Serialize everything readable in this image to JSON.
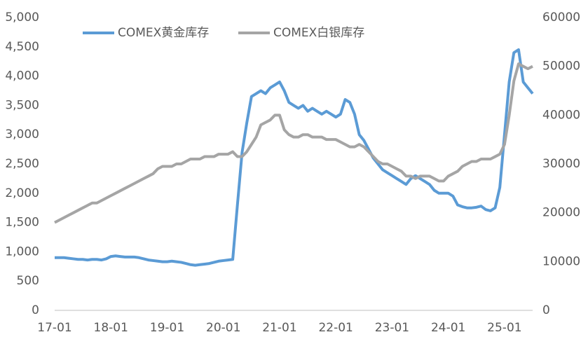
{
  "chart_data": {
    "type": "line",
    "categories": [
      "17-01",
      null,
      null,
      null,
      null,
      null,
      null,
      null,
      null,
      null,
      null,
      null,
      "18-01",
      null,
      null,
      null,
      null,
      null,
      null,
      null,
      null,
      null,
      null,
      null,
      "19-01",
      null,
      null,
      null,
      null,
      null,
      null,
      null,
      null,
      null,
      null,
      null,
      "20-01",
      null,
      null,
      null,
      null,
      null,
      null,
      null,
      null,
      null,
      null,
      null,
      "21-01",
      null,
      null,
      null,
      null,
      null,
      null,
      null,
      null,
      null,
      null,
      null,
      "22-01",
      null,
      null,
      null,
      null,
      null,
      null,
      null,
      null,
      null,
      null,
      null,
      "23-01",
      null,
      null,
      null,
      null,
      null,
      null,
      null,
      null,
      null,
      null,
      null,
      "24-01",
      null,
      null,
      null,
      null,
      null,
      null,
      null,
      null,
      null,
      null,
      null,
      "25-01",
      null,
      null,
      null,
      null,
      null,
      null
    ],
    "series": [
      {
        "name": "COMEX黄金库存",
        "color": "#5b9bd5",
        "axis": "y",
        "values": [
          900,
          900,
          900,
          890,
          880,
          870,
          870,
          860,
          870,
          870,
          860,
          880,
          920,
          930,
          920,
          910,
          910,
          910,
          900,
          880,
          860,
          850,
          840,
          830,
          830,
          840,
          830,
          820,
          800,
          780,
          770,
          780,
          790,
          800,
          820,
          840,
          850,
          860,
          870,
          1800,
          2700,
          3200,
          3650,
          3700,
          3750,
          3700,
          3800,
          3850,
          3900,
          3750,
          3550,
          3500,
          3450,
          3500,
          3400,
          3450,
          3400,
          3350,
          3400,
          3350,
          3300,
          3350,
          3600,
          3550,
          3350,
          3000,
          2900,
          2750,
          2600,
          2500,
          2400,
          2350,
          2300,
          2250,
          2200,
          2150,
          2250,
          2300,
          2250,
          2200,
          2150,
          2050,
          2000,
          2000,
          2000,
          1950,
          1800,
          1770,
          1750,
          1750,
          1760,
          1780,
          1720,
          1700,
          1750,
          2100,
          3000,
          3900,
          4400,
          4450,
          3900,
          3800,
          3700
        ]
      },
      {
        "name": "COMEX白银库存",
        "color": "#a5a5a5",
        "axis": "y2",
        "values": [
          18000,
          18500,
          19000,
          19500,
          20000,
          20500,
          21000,
          21500,
          22000,
          22000,
          22500,
          23000,
          23500,
          24000,
          24500,
          25000,
          25500,
          26000,
          26500,
          27000,
          27500,
          28000,
          29000,
          29500,
          29500,
          29500,
          30000,
          30000,
          30500,
          31000,
          31000,
          31000,
          31500,
          31500,
          31500,
          32000,
          32000,
          32000,
          32500,
          31500,
          31500,
          32500,
          34000,
          35500,
          38000,
          38500,
          39000,
          40000,
          40000,
          37000,
          36000,
          35500,
          35500,
          36000,
          36000,
          35500,
          35500,
          35500,
          35000,
          35000,
          35000,
          34500,
          34000,
          33500,
          33500,
          34000,
          33500,
          32500,
          31500,
          30500,
          30000,
          30000,
          29500,
          29000,
          28500,
          27500,
          27500,
          27000,
          27500,
          27500,
          27500,
          27000,
          26500,
          26500,
          27500,
          28000,
          28500,
          29500,
          30000,
          30500,
          30500,
          31000,
          31000,
          31000,
          31500,
          32000,
          34000,
          40000,
          47000,
          50500,
          50000,
          49500,
          50000
        ]
      }
    ],
    "ylim": [
      0,
      5000
    ],
    "yticks": [
      0,
      500,
      {
        "value": 1000,
        "label": "1,000"
      },
      {
        "value": 1500,
        "label": "1,500"
      },
      {
        "value": 2000,
        "label": "2,000"
      },
      {
        "value": 2500,
        "label": "2,500"
      },
      {
        "value": 3000,
        "label": "3,000"
      },
      {
        "value": 3500,
        "label": "3,500"
      },
      {
        "value": 4000,
        "label": "4,000"
      },
      {
        "value": 4500,
        "label": "4,500"
      },
      {
        "value": 5000,
        "label": "5,000"
      }
    ],
    "y2lim": [
      0,
      60000
    ],
    "y2ticks": [
      0,
      10000,
      20000,
      30000,
      40000,
      50000,
      60000
    ],
    "grid": false,
    "legend": "top-left"
  }
}
